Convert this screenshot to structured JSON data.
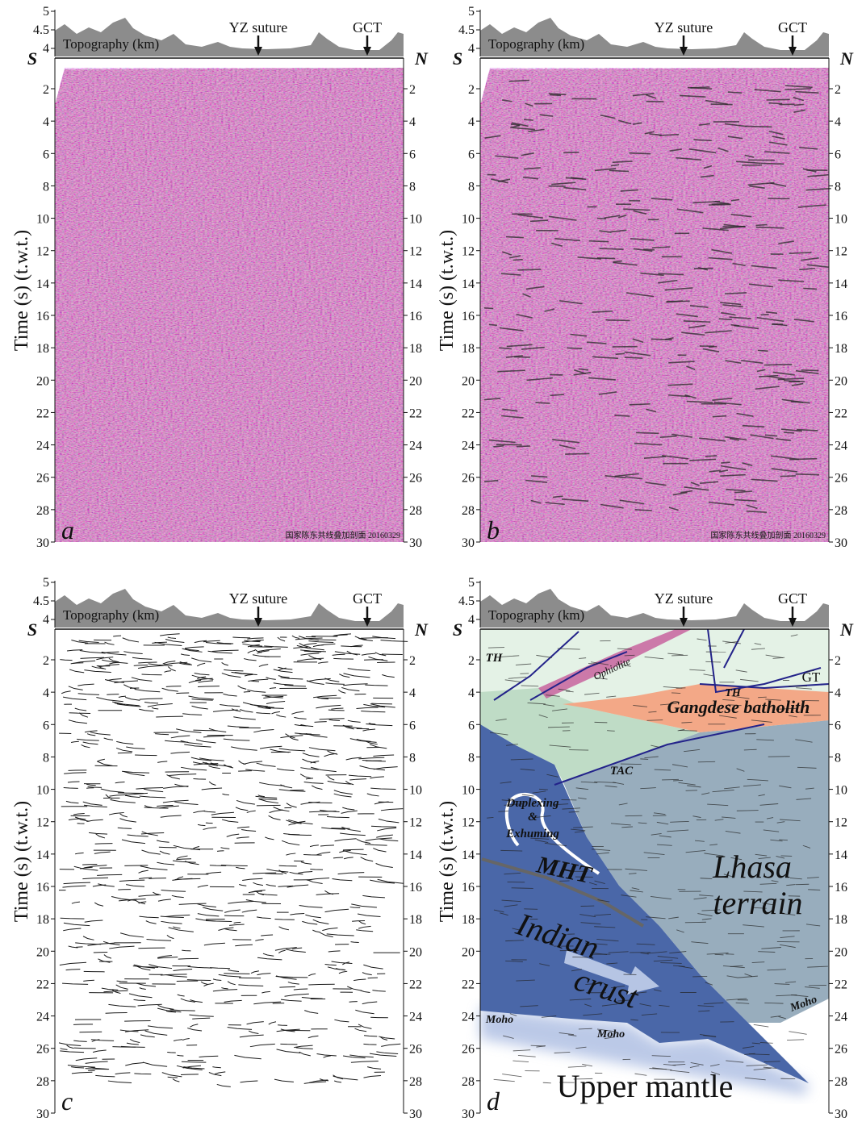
{
  "panels": [
    {
      "label": "a",
      "topography_label": "Topography (km)",
      "markers": [
        "YZ suture",
        "GCT"
      ],
      "left_end": "S",
      "right_end": "N",
      "y_axis_label": "Time (s) (t.w.t.)",
      "topo_ticks": [
        4,
        4.5,
        5
      ],
      "time_ticks": [
        2,
        4,
        6,
        8,
        10,
        12,
        14,
        16,
        18,
        20,
        22,
        24,
        26,
        28,
        30
      ],
      "stamp": "国家陈东共线叠加剖面 20160329"
    },
    {
      "label": "b",
      "topography_label": "Topography (km)",
      "markers": [
        "YZ suture",
        "GCT"
      ],
      "left_end": "S",
      "right_end": "N",
      "y_axis_label": "Time (s) (t.w.t.)",
      "topo_ticks": [
        4,
        4.5,
        5
      ],
      "time_ticks": [
        2,
        4,
        6,
        8,
        10,
        12,
        14,
        16,
        18,
        20,
        22,
        24,
        26,
        28,
        30
      ],
      "stamp": "国家陈东共线叠加剖面 20160329"
    },
    {
      "label": "c",
      "topography_label": "Topography (km)",
      "markers": [
        "YZ suture",
        "GCT"
      ],
      "left_end": "S",
      "right_end": "N",
      "y_axis_label": "Time (s) (t.w.t.)",
      "topo_ticks": [
        4,
        4.5,
        5
      ],
      "time_ticks": [
        2,
        4,
        6,
        8,
        10,
        12,
        14,
        16,
        18,
        20,
        22,
        24,
        26,
        28,
        30
      ]
    },
    {
      "label": "d",
      "topography_label": "Topography (km)",
      "markers": [
        "YZ suture",
        "GCT"
      ],
      "left_end": "S",
      "right_end": "N",
      "y_axis_label": "Time (s) (t.w.t.)",
      "topo_ticks": [
        4,
        4.5,
        5
      ],
      "time_ticks": [
        2,
        4,
        6,
        8,
        10,
        12,
        14,
        16,
        18,
        20,
        22,
        24,
        26,
        28,
        30
      ],
      "annotations": {
        "th_left": "TH",
        "ophiolite": "Ophiolite",
        "th_right": "TH",
        "gt": "GT",
        "gangdese": "Gangdese batholith",
        "tac": "TAC",
        "duplexing": "Duplexing",
        "amp": "&",
        "exhuming": "Exhuming",
        "mht": "MHT",
        "lhasa_1": "Lhasa",
        "lhasa_2": "terrain",
        "indian_1": "Indian",
        "indian_2": "crust",
        "moho_1": "Moho",
        "moho_2": "Moho",
        "moho_3": "Moho",
        "upper_mantle": "Upper mantle"
      }
    }
  ]
}
